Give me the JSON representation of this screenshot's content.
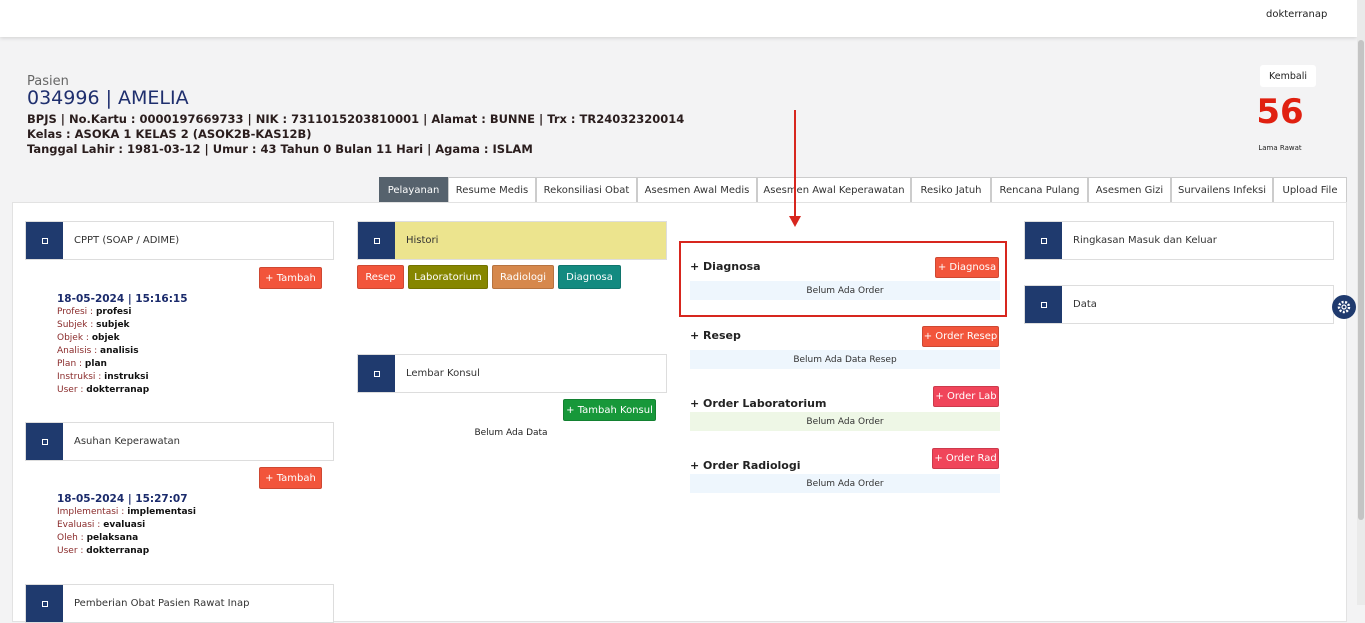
{
  "header": {
    "user": "dokterranap"
  },
  "patient": {
    "label": "Pasien",
    "name": "034996 | AMELIA",
    "line1": "BPJS | No.Kartu : 0000197669733 | NIK : 7311015203810001 | Alamat : BUNNE | Trx : TR24032320014",
    "line2": "Kelas : ASOKA 1 KELAS 2 (ASOK2B-KAS12B)",
    "line3": "Tanggal Lahir : 1981-03-12 | Umur : 43 Tahun 0 Bulan 11 Hari | Agama : ISLAM"
  },
  "stay": {
    "back": "Kembali",
    "days": "56",
    "label": "Lama Rawat"
  },
  "tabs": [
    "Pelayanan",
    "Resume Medis",
    "Rekonsiliasi Obat",
    "Asesmen Awal Medis",
    "Asesmen Awal Keperawatan",
    "Resiko Jatuh",
    "Rencana Pulang",
    "Asesmen Gizi",
    "Survailens Infeksi",
    "Upload File"
  ],
  "column1": {
    "cppt": {
      "title": "CPPT (SOAP / ADIME)",
      "button": "+ Tambah",
      "date": "18-05-2024 | 15:16:15",
      "fields": [
        {
          "label": "Profesi :",
          "value": "profesi"
        },
        {
          "label": "Subjek :",
          "value": "subjek"
        },
        {
          "label": "Objek :",
          "value": "objek"
        },
        {
          "label": "Analisis :",
          "value": "analisis"
        },
        {
          "label": "Plan :",
          "value": "plan"
        },
        {
          "label": "Instruksi :",
          "value": "instruksi"
        },
        {
          "label": "User :",
          "value": "dokterranap"
        }
      ]
    },
    "asuhan": {
      "title": "Asuhan Keperawatan",
      "button": "+ Tambah",
      "date": "18-05-2024 | 15:27:07",
      "fields": [
        {
          "label": "Implementasi :",
          "value": "implementasi"
        },
        {
          "label": "Evaluasi :",
          "value": "evaluasi"
        },
        {
          "label": "Oleh :",
          "value": "pelaksana"
        },
        {
          "label": "User :",
          "value": "dokterranap"
        }
      ]
    },
    "pemberian": {
      "title": "Pemberian Obat Pasien Rawat Inap"
    }
  },
  "column2": {
    "histori": {
      "title": "Histori",
      "buttons": [
        "Resep",
        "Laboratorium",
        "Radiologi",
        "Diagnosa"
      ]
    },
    "konsul": {
      "title": "Lembar Konsul",
      "button": "+ Tambah Konsul",
      "empty": "Belum Ada Data"
    }
  },
  "column3": {
    "sections": [
      {
        "title": "+ Diagnosa",
        "button": "+ Diagnosa",
        "empty": "Belum Ada Order"
      },
      {
        "title": "+ Resep",
        "button": "+ Order Resep",
        "empty": "Belum Ada Data Resep"
      },
      {
        "title": "+ Order Laboratorium",
        "button": "+ Order Lab",
        "empty": "Belum Ada Order"
      },
      {
        "title": "+ Order Radiologi",
        "button": "+ Order Rad",
        "empty": "Belum Ada Order"
      }
    ]
  },
  "column4": {
    "panels": [
      "Ringkasan Masuk dan Keluar",
      "Data"
    ]
  }
}
